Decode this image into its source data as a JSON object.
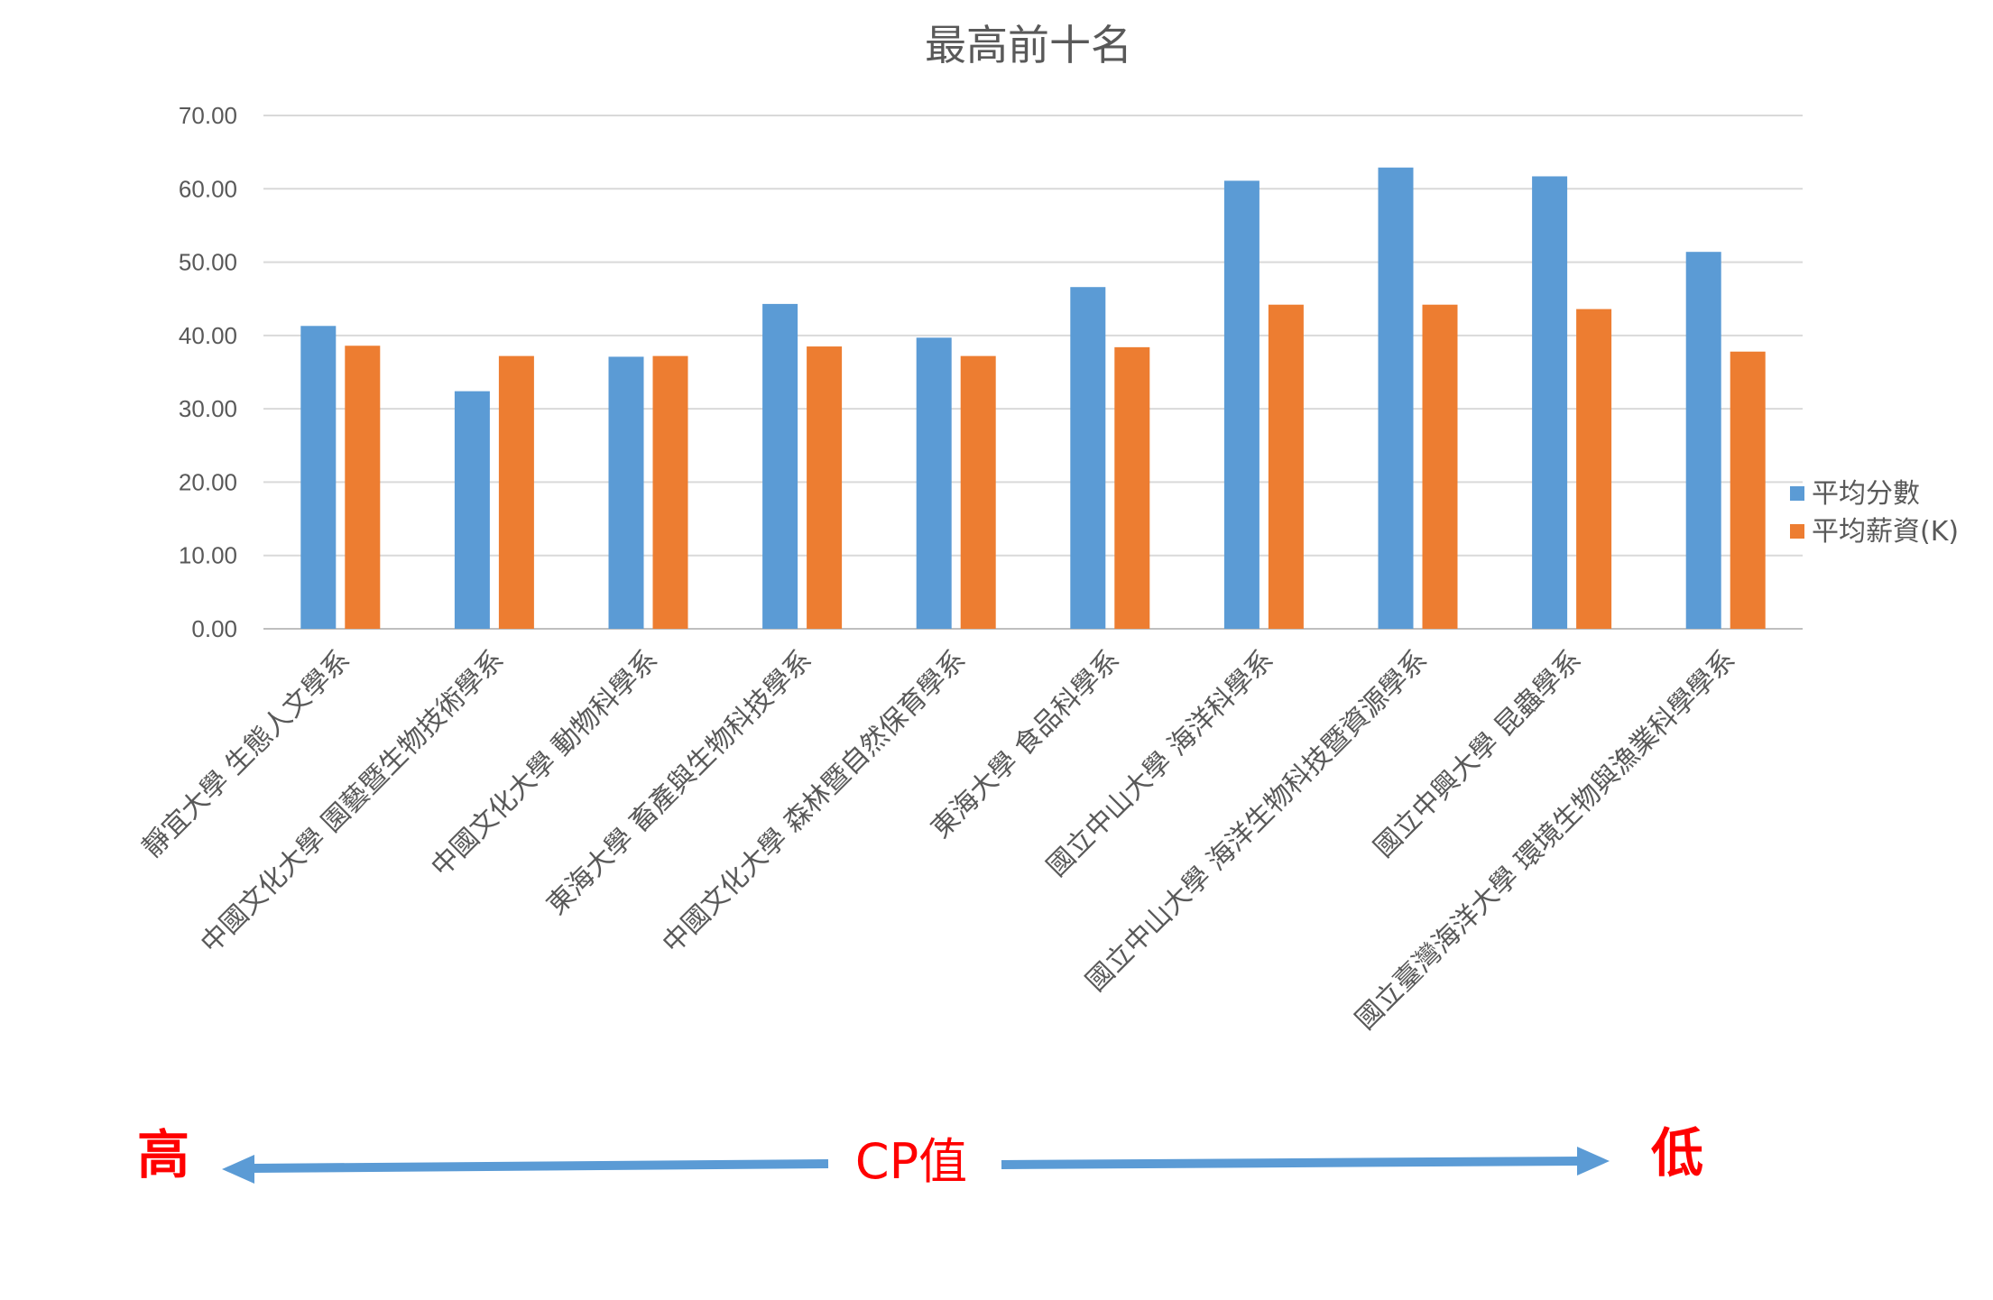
{
  "chart_data": {
    "type": "bar",
    "title": "最高前十名",
    "categories": [
      "靜宜大學 生態人文學系",
      "中國文化大學 園藝暨生物技術學系",
      "中國文化大學 動物科學系",
      "東海大學 畜產與生物科技學系",
      "中國文化大學 森林暨自然保育學系",
      "東海大學 食品科學系",
      "國立中山大學 海洋科學系",
      "國立中山大學 海洋生物科技暨資源學系",
      "國立中興大學 昆蟲學系",
      "國立臺灣海洋大學 環境生物與漁業科學學系"
    ],
    "series": [
      {
        "name": "平均分數",
        "color": "#5b9bd5",
        "values": [
          41.3,
          32.4,
          37.1,
          44.3,
          39.7,
          46.6,
          61.1,
          62.9,
          61.7,
          51.4
        ]
      },
      {
        "name": "平均薪資(K)",
        "color": "#ed7d31",
        "values": [
          38.6,
          37.2,
          37.2,
          38.5,
          37.2,
          38.4,
          44.2,
          44.2,
          43.6,
          37.8
        ]
      }
    ],
    "ylim": [
      0,
      70
    ],
    "yticks": [
      "0.00",
      "10.00",
      "20.00",
      "30.00",
      "40.00",
      "50.00",
      "60.00",
      "70.00"
    ],
    "grid": true,
    "legend_position": "right",
    "xlabel": "",
    "ylabel": ""
  },
  "cp_scale": {
    "high_label": "高",
    "center_label": "CP值",
    "low_label": "低",
    "label_color": "#ff0000",
    "arrow_color": "#5b9bd5"
  }
}
